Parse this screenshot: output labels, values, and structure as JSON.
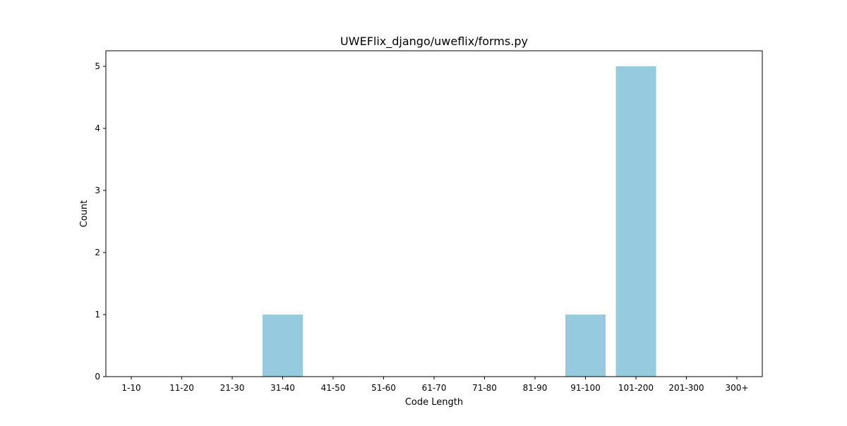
{
  "chart_data": {
    "type": "bar",
    "title": "UWEFlix_django/uweflix/forms.py",
    "xlabel": "Code Length",
    "ylabel": "Count",
    "categories": [
      "1-10",
      "11-20",
      "21-30",
      "31-40",
      "41-50",
      "51-60",
      "61-70",
      "71-80",
      "81-90",
      "91-100",
      "101-200",
      "201-300",
      "300+"
    ],
    "values": [
      0,
      0,
      0,
      1,
      0,
      0,
      0,
      0,
      0,
      1,
      5,
      0,
      0
    ],
    "ylim": [
      0,
      5.25
    ],
    "yticks": [
      "0",
      "1",
      "2",
      "3",
      "4",
      "5"
    ],
    "grid": false,
    "bar_color": "#96cade"
  }
}
